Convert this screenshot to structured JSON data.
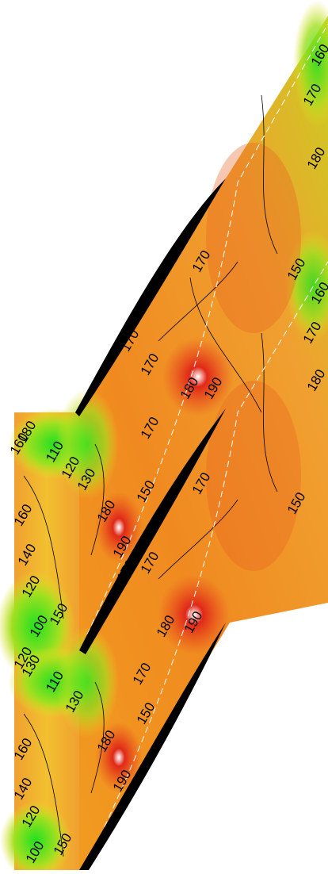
{
  "contour_labels": [
    160,
    170,
    180,
    170,
    150,
    160,
    170,
    170,
    170,
    180,
    190,
    180,
    180,
    110,
    120,
    130,
    160,
    170,
    150,
    170,
    150,
    180,
    190,
    160,
    140,
    120,
    170,
    170,
    150,
    100,
    180,
    190,
    120,
    130,
    110,
    130,
    170,
    150,
    180,
    190,
    160,
    140,
    120,
    100,
    150
  ]
}
